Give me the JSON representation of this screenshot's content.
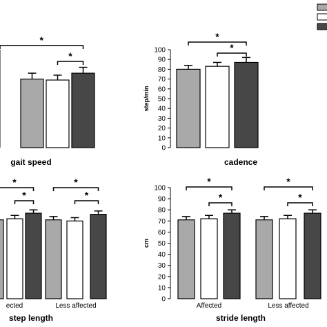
{
  "colors": {
    "gray": "#a9a9a9",
    "white": "#ffffff",
    "dark": "#474747",
    "stroke": "#000000"
  },
  "chart_data": [
    {
      "id": "gait",
      "type": "bar",
      "title": "gait speed",
      "ylabel": "",
      "ylim": [
        0,
        100
      ],
      "yticks": [],
      "categories": [
        ""
      ],
      "series": [
        {
          "color": "gray",
          "values": [
            70
          ],
          "errors": [
            6
          ]
        },
        {
          "color": "white",
          "values": [
            69
          ],
          "errors": [
            5
          ]
        },
        {
          "color": "dark",
          "values": [
            76
          ],
          "errors": [
            6
          ]
        }
      ],
      "annotations": [
        {
          "text": "*",
          "x": [
            0,
            2
          ]
        },
        {
          "text": "*",
          "x": [
            1,
            2
          ]
        }
      ]
    },
    {
      "id": "cadence",
      "type": "bar",
      "title": "cadence",
      "ylabel": "step/min",
      "ylim": [
        0,
        100
      ],
      "yticks": [
        "0",
        "10",
        "20",
        "30",
        "40",
        "50",
        "60",
        "70",
        "80",
        "90",
        "100"
      ],
      "categories": [
        ""
      ],
      "series": [
        {
          "color": "gray",
          "values": [
            80
          ],
          "errors": [
            4
          ]
        },
        {
          "color": "white",
          "values": [
            83
          ],
          "errors": [
            4
          ]
        },
        {
          "color": "dark",
          "values": [
            87
          ],
          "errors": [
            5
          ]
        }
      ],
      "annotations": [
        {
          "text": "*",
          "x": [
            0,
            2
          ]
        },
        {
          "text": "*",
          "x": [
            1,
            2
          ]
        }
      ]
    },
    {
      "id": "step",
      "type": "bar",
      "title": "step length",
      "ylabel": "",
      "ylim": [
        0,
        100
      ],
      "yticks": [],
      "categories": [
        "ected",
        "Less affected"
      ],
      "series": [
        {
          "color": "gray",
          "values": [
            71,
            71
          ],
          "errors": [
            3,
            3
          ]
        },
        {
          "color": "white",
          "values": [
            72,
            70
          ],
          "errors": [
            3,
            3
          ]
        },
        {
          "color": "dark",
          "values": [
            77,
            76
          ],
          "errors": [
            3,
            3
          ]
        }
      ],
      "annotations": [
        {
          "text": "*",
          "x": [
            0,
            2
          ],
          "group": 0
        },
        {
          "text": "*",
          "x": [
            1,
            2
          ],
          "group": 0
        },
        {
          "text": "*",
          "x": [
            0,
            2
          ],
          "group": 1
        },
        {
          "text": "*",
          "x": [
            1,
            2
          ],
          "group": 1
        }
      ]
    },
    {
      "id": "stride",
      "type": "bar",
      "title": "stride length",
      "ylabel": "cm",
      "ylim": [
        0,
        100
      ],
      "yticks": [
        "0",
        "10",
        "20",
        "30",
        "40",
        "50",
        "60",
        "70",
        "80",
        "90",
        "100"
      ],
      "categories": [
        "Affected",
        "Less affected"
      ],
      "series": [
        {
          "color": "gray",
          "values": [
            71,
            71
          ],
          "errors": [
            3,
            3
          ]
        },
        {
          "color": "white",
          "values": [
            72,
            72
          ],
          "errors": [
            3,
            3
          ]
        },
        {
          "color": "dark",
          "values": [
            77,
            77
          ],
          "errors": [
            3,
            3
          ]
        }
      ],
      "annotations": [
        {
          "text": "*",
          "x": [
            0,
            2
          ],
          "group": 0
        },
        {
          "text": "*",
          "x": [
            1,
            2
          ],
          "group": 0
        },
        {
          "text": "*",
          "x": [
            0,
            2
          ],
          "group": 1
        },
        {
          "text": "*",
          "x": [
            1,
            2
          ],
          "group": 1
        }
      ]
    }
  ],
  "legend": {
    "placement": "top-right",
    "swatches": [
      "gray",
      "white",
      "dark"
    ]
  }
}
